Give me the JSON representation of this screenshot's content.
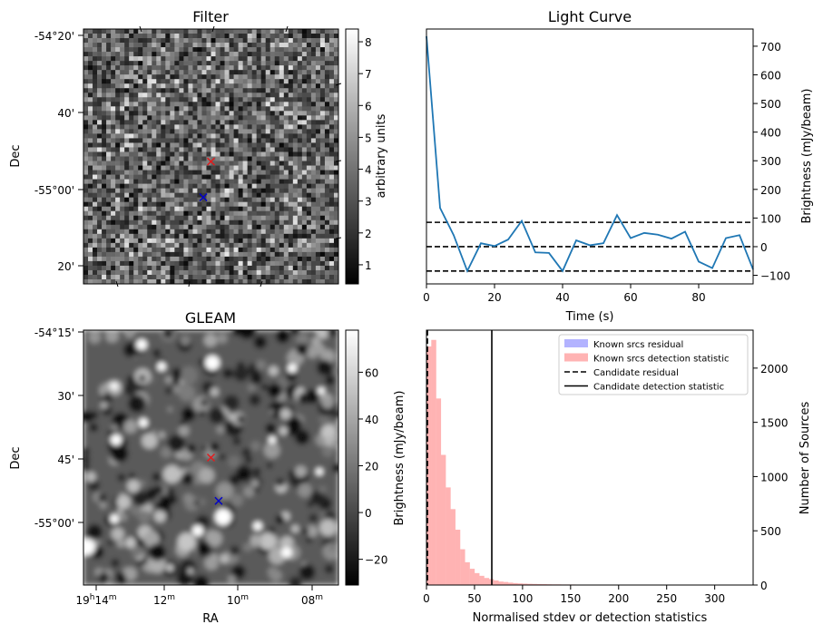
{
  "chart_data": [
    {
      "type": "heatmap",
      "title": "Filter",
      "xlabel": "",
      "ylabel": "Dec",
      "ytick_labels": [
        "-54°20'",
        "40'",
        "-55°00'",
        "20'"
      ],
      "colorbar": {
        "label": "arbitrary units",
        "ticks": [
          1,
          2,
          3,
          4,
          5,
          6,
          7,
          8
        ],
        "range": [
          0.4,
          8.4
        ],
        "cmap": "gray"
      },
      "markers": [
        {
          "name": "known source",
          "symbol": "x",
          "color": "#e41a1c",
          "pos": [
            0.5,
            0.52
          ]
        },
        {
          "name": "candidate",
          "symbol": "x",
          "color": "#0000cc",
          "pos": [
            0.47,
            0.66
          ]
        }
      ]
    },
    {
      "type": "line",
      "title": "Light Curve",
      "xlabel": "Time (s)",
      "ylabel": "Brightness (mJy/beam)",
      "xlim": [
        0,
        96
      ],
      "ylim": [
        -130,
        760
      ],
      "xticks": [
        0,
        20,
        40,
        60,
        80
      ],
      "yticks": [
        -100,
        0,
        100,
        200,
        300,
        400,
        500,
        600,
        700
      ],
      "series": [
        {
          "name": "light curve",
          "color": "#1f77b4",
          "x": [
            0,
            4,
            8,
            12,
            16,
            20,
            24,
            28,
            32,
            36,
            40,
            44,
            48,
            52,
            56,
            60,
            64,
            68,
            72,
            76,
            80,
            84,
            88,
            92,
            96
          ],
          "y": [
            735,
            135,
            40,
            -85,
            12,
            2,
            25,
            90,
            -20,
            -22,
            -85,
            22,
            5,
            12,
            110,
            30,
            48,
            42,
            28,
            52,
            -52,
            -75,
            30,
            40,
            -80
          ]
        }
      ],
      "hlines": [
        {
          "y": 85,
          "style": "dashed",
          "color": "#000000"
        },
        {
          "y": 0,
          "style": "dashed",
          "color": "#000000"
        },
        {
          "y": -85,
          "style": "dashed",
          "color": "#000000"
        }
      ]
    },
    {
      "type": "heatmap",
      "title": "GLEAM",
      "xlabel": "RA",
      "ylabel": "Dec",
      "xtick_labels": [
        {
          "h": "19",
          "hu": "h",
          "m": "14",
          "mu": "m"
        },
        {
          "h": "",
          "hu": "",
          "m": "12",
          "mu": "m"
        },
        {
          "h": "",
          "hu": "",
          "m": "10",
          "mu": "m"
        },
        {
          "h": "",
          "hu": "",
          "m": "08",
          "mu": "m"
        }
      ],
      "ytick_labels": [
        "-54°15'",
        "30'",
        "45'",
        "-55°00'"
      ],
      "colorbar": {
        "label": "",
        "ticks": [
          -20,
          0,
          20,
          40,
          60
        ],
        "range": [
          -31,
          78
        ],
        "cmap": "gray"
      },
      "markers": [
        {
          "name": "known source",
          "symbol": "x",
          "color": "#e41a1c",
          "pos": [
            0.5,
            0.5
          ]
        },
        {
          "name": "candidate",
          "symbol": "x",
          "color": "#0000cc",
          "pos": [
            0.53,
            0.67
          ]
        }
      ]
    },
    {
      "type": "bar",
      "subtype": "histogram",
      "title": "",
      "xlabel": "Normalised stdev or detection statistics",
      "ylabel_left": "Brightness (mJy/beam)",
      "ylabel_right": "Number of Sources",
      "xlim": [
        0,
        340
      ],
      "ylim": [
        0,
        2350
      ],
      "xticks": [
        0,
        50,
        100,
        150,
        200,
        250,
        300
      ],
      "yticks": [
        0,
        500,
        1000,
        1500,
        2000
      ],
      "bin_width": 5,
      "bins_start": 0,
      "series": [
        {
          "name": "Known srcs detection statistic",
          "color": "#ffb3b3",
          "values": [
            2200,
            2260,
            1720,
            1200,
            900,
            700,
            510,
            330,
            210,
            150,
            110,
            85,
            65,
            55,
            42,
            32,
            28,
            22,
            18,
            15,
            13,
            11,
            10,
            9,
            8,
            7,
            6,
            6,
            5,
            5,
            5,
            4,
            4,
            4,
            3,
            3,
            3,
            3,
            2,
            2,
            2,
            2,
            2,
            2,
            2,
            2,
            2,
            2,
            2,
            2,
            2,
            2,
            1,
            1,
            1,
            1,
            1,
            1,
            1,
            1,
            1,
            1,
            1,
            1,
            1,
            1,
            1,
            1
          ]
        },
        {
          "name": "Known srcs residual",
          "color": "#b3b3ff",
          "values": []
        }
      ],
      "vlines": [
        {
          "name": "Candidate residual",
          "x": 1,
          "style": "dashed",
          "color": "#000000"
        },
        {
          "name": "Candidate detection statistic",
          "x": 68,
          "style": "solid",
          "color": "#000000"
        }
      ],
      "legend": {
        "position": "top-right",
        "entries": [
          {
            "label": "Known srcs residual",
            "kind": "patch",
            "color": "#b3b3ff"
          },
          {
            "label": "Known srcs detection statistic",
            "kind": "patch",
            "color": "#ffb3b3"
          },
          {
            "label": "Candidate residual",
            "kind": "dash",
            "color": "#000000"
          },
          {
            "label": "Candidate detection statistic",
            "kind": "line",
            "color": "#000000"
          }
        ]
      }
    }
  ]
}
